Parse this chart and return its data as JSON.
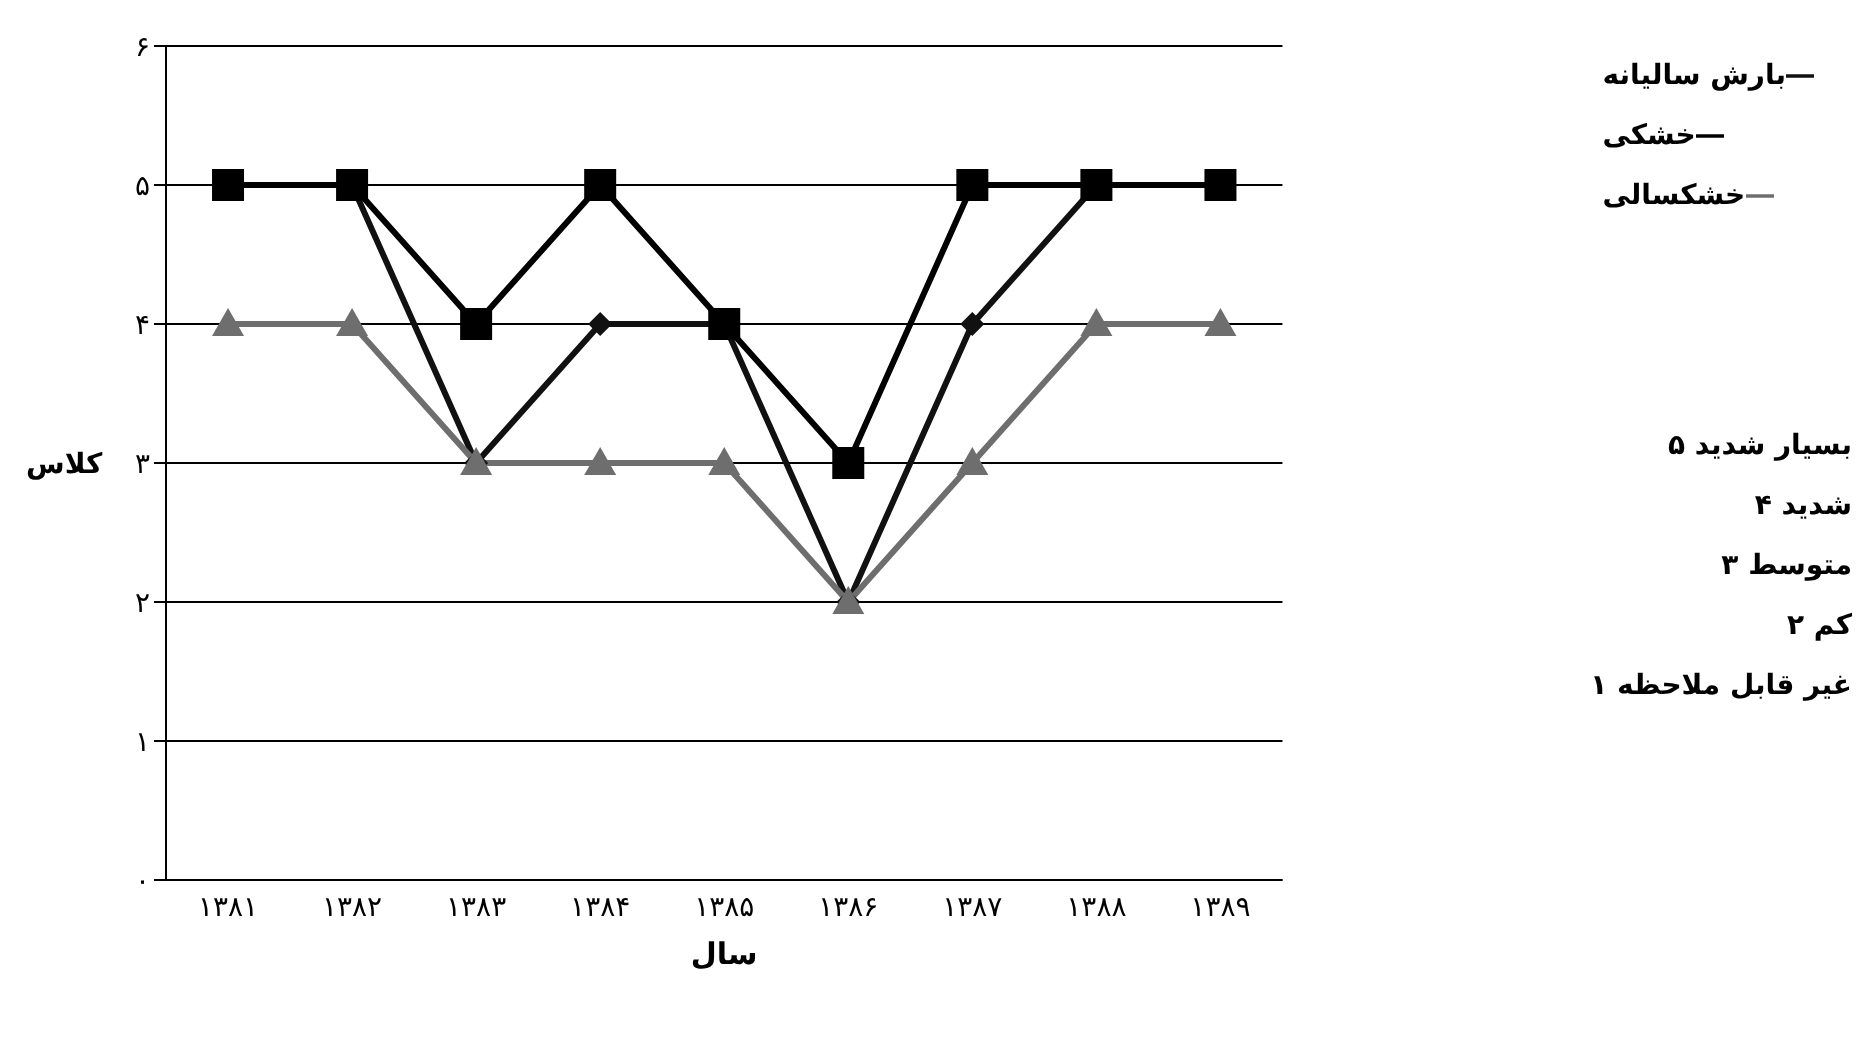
{
  "chart_data": {
    "type": "line",
    "xlabel": "سال",
    "ylabel": "کلاس",
    "categories": [
      "۱۳۸۱",
      "۱۳۸۲",
      "۱۳۸۳",
      "۱۳۸۴",
      "۱۳۸۵",
      "۱۳۸۶",
      "۱۳۸۷",
      "۱۳۸۸",
      "۱۳۸۹"
    ],
    "series": [
      {
        "name": "بارش سالیانه",
        "color": "#111111",
        "marker": "diamond",
        "values": [
          5,
          5,
          3,
          4,
          4,
          2,
          4,
          5,
          5
        ]
      },
      {
        "name": "خشکی",
        "color": "#000000",
        "marker": "square",
        "values": [
          5,
          5,
          4,
          5,
          4,
          3,
          5,
          5,
          5
        ]
      },
      {
        "name": "خشکسالی",
        "color": "#6e6e6e",
        "marker": "triangle",
        "values": [
          4,
          4,
          3,
          3,
          3,
          2,
          3,
          4,
          4
        ]
      }
    ],
    "ylim": [
      0,
      6
    ],
    "yticks": [
      {
        "value": 0,
        "label": "۰"
      },
      {
        "value": 1,
        "label": "۱"
      },
      {
        "value": 2,
        "label": "۲"
      },
      {
        "value": 3,
        "label": "۳"
      },
      {
        "value": 4,
        "label": "۴"
      },
      {
        "value": 5,
        "label": "۵"
      },
      {
        "value": 6,
        "label": "۶"
      }
    ],
    "grid": "y",
    "legend": "right",
    "line_style": "solid",
    "annotations": [
      "بسیار شدید ۵",
      "شدید ۴",
      "متوسط ۳",
      "کم ۲",
      "غیر قابل ملاحظه ۱"
    ]
  }
}
